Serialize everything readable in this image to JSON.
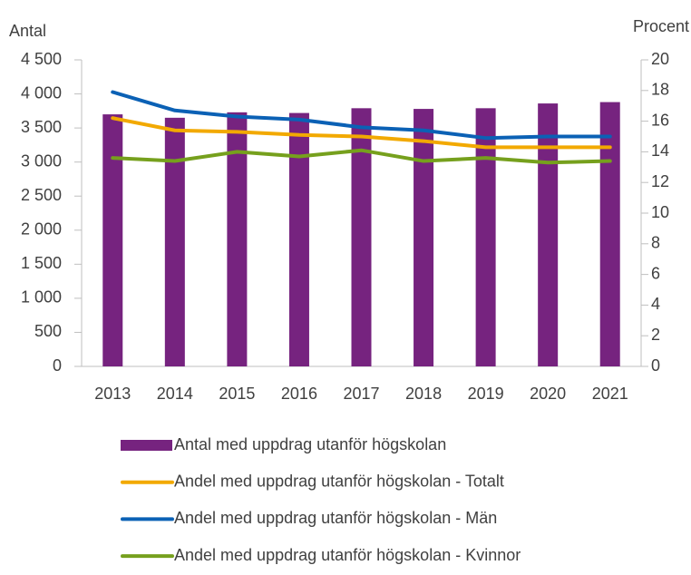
{
  "chart_data": {
    "type": "bar",
    "y_label": "Antal",
    "y2_label": "Procent",
    "categories": [
      "2013",
      "2014",
      "2015",
      "2016",
      "2017",
      "2018",
      "2019",
      "2020",
      "2021"
    ],
    "series": [
      {
        "name": "Antal med uppdrag utanför högskolan",
        "type": "bar",
        "axis": "y",
        "color": "#76237f",
        "values": [
          3700,
          3650,
          3730,
          3720,
          3790,
          3780,
          3790,
          3860,
          3880
        ]
      },
      {
        "name": "Andel med uppdrag utanför högskolan - Totalt",
        "type": "line",
        "axis": "y2",
        "color": "#f2a900",
        "values": [
          16.2,
          15.4,
          15.3,
          15.1,
          15.0,
          14.7,
          14.3,
          14.3,
          14.3
        ]
      },
      {
        "name": "Andel med uppdrag utanför högskolan - Män",
        "type": "line",
        "axis": "y2",
        "color": "#0b61b5",
        "values": [
          17.9,
          16.7,
          16.3,
          16.1,
          15.6,
          15.4,
          14.9,
          15.0,
          15.0
        ]
      },
      {
        "name": "Andel med uppdrag utanför högskolan - Kvinnor",
        "type": "line",
        "axis": "y2",
        "color": "#76a01d",
        "values": [
          13.6,
          13.4,
          14.0,
          13.7,
          14.1,
          13.4,
          13.6,
          13.3,
          13.4
        ]
      }
    ],
    "ylim": [
      0,
      4500
    ],
    "yticks": [
      0,
      500,
      {
        "value": 1000,
        "label": "1 000"
      },
      {
        "value": 1500,
        "label": "1 500"
      },
      {
        "value": 2000,
        "label": "2 000"
      },
      {
        "value": 2500,
        "label": "2 500"
      },
      {
        "value": 3000,
        "label": "3 000"
      },
      {
        "value": 3500,
        "label": "3 500"
      },
      {
        "value": 4000,
        "label": "4 000"
      },
      {
        "value": 4500,
        "label": "4 500"
      }
    ],
    "y2lim": [
      0,
      20
    ],
    "y2ticks": [
      0,
      2,
      4,
      6,
      8,
      10,
      12,
      14,
      16,
      18,
      20
    ],
    "grid": false,
    "legend": "bottom"
  }
}
